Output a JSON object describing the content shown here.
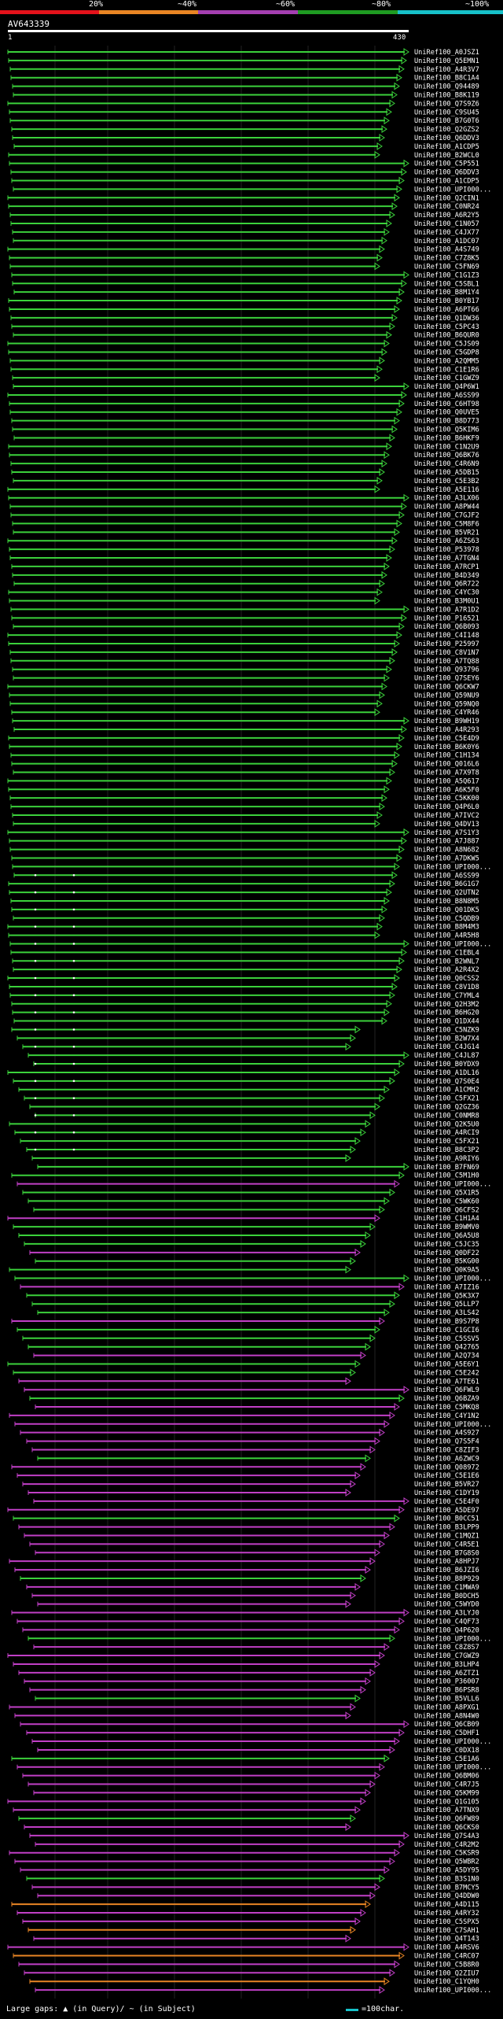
{
  "legend": {
    "labels": [
      "20%",
      "~40%",
      "~60%",
      "~80%",
      "~100%"
    ],
    "colors": [
      "#e4121b",
      "#e98524",
      "#a43fb1",
      "#1f9b22",
      "#17c1c9"
    ]
  },
  "query": {
    "title": "AV643339",
    "start": "1",
    "end": "430"
  },
  "hits": [
    "UniRef100_A0JSZ1",
    "UniRef100_Q5EMN1",
    "UniRef100_A4R3V7",
    "UniRef100_B8C1A4",
    "UniRef100_Q94489",
    "UniRef100_B8K119",
    "UniRef100_Q7S9Z6",
    "UniRef100_C9SU45",
    "UniRef100_B7G0T6",
    "UniRef100_Q2GZS2",
    "UniRef100_Q6DDV3",
    "UniRef100_A1CDP5",
    "UniRef100_B2WCL0",
    "UniRef100_C5P551",
    "UniRef100_Q6DDV3",
    "UniRef100_A1CDP5",
    "UniRef100_UPI000...",
    "UniRef100_Q2CIN1",
    "UniRef100_C0NR24",
    "UniRef100_A6R2Y5",
    "UniRef100_C1N057",
    "UniRef100_C4JX77",
    "UniRef100_A1DC07",
    "UniRef100_A4S749",
    "UniRef100_C7Z8K5",
    "UniRef100_C5FN69",
    "UniRef100_C1G1Z3",
    "UniRef100_C5SBL1",
    "UniRef100_B8M1Y4",
    "UniRef100_B0YB17",
    "UniRef100_A6PT66",
    "UniRef100_Q1DW36",
    "UniRef100_C5PC43",
    "UniRef100_B6QUR0",
    "UniRef100_C5JS09",
    "UniRef100_C5GDP8",
    "UniRef100_A2QMM5",
    "UniRef100_C1E1R6",
    "UniRef100_C1GWZ9",
    "UniRef100_Q4P6W1",
    "UniRef100_A6SS99",
    "UniRef100_C6HT98",
    "UniRef100_Q0UVE5",
    "UniRef100_B8D773",
    "UniRef100_Q5KIM6",
    "UniRef100_B6HKF9",
    "UniRef100_C1N2U9",
    "UniRef100_Q6BK76",
    "UniRef100_C4R6N9",
    "UniRef100_A5DB15",
    "UniRef100_C5E3B2",
    "UniRef100_A5E116",
    "UniRef100_A3LX06",
    "UniRef100_A8PW44",
    "UniRef100_C7GJF2",
    "UniRef100_C5M8F6",
    "UniRef100_B5VR21",
    "UniRef100_A6ZS63",
    "UniRef100_P53978",
    "UniRef100_A7TGN4",
    "UniRef100_A7RCP1",
    "UniRef100_B4D349",
    "UniRef100_Q6R722",
    "UniRef100_C4YC30",
    "UniRef100_B3M0U1",
    "UniRef100_A7R1D2",
    "UniRef100_P16521",
    "UniRef100_Q6B093",
    "UniRef100_C4I148",
    "UniRef100_P25997",
    "UniRef100_C8V1N7",
    "UniRef100_A7TQ88",
    "UniRef100_Q93796",
    "UniRef100_Q7SEY6",
    "UniRef100_Q6CKW7",
    "UniRef100_Q59NU9",
    "UniRef100_Q59NQ0",
    "UniRef100_C4YR46",
    "UniRef100_B9WH19",
    "UniRef100_A4R293",
    "UniRef100_C5E4D9",
    "UniRef100_B6K0Y6",
    "UniRef100_C1H134",
    "UniRef100_Q016L6",
    "UniRef100_A7X9T8",
    "UniRef100_A5Q617",
    "UniRef100_A6K5F0",
    "UniRef100_C5KK00",
    "UniRef100_Q4P6L0",
    "UniRef100_A7IVC2",
    "UniRef100_Q4DV13",
    "UniRef100_A7S1Y3",
    "UniRef100_A7J887",
    "UniRef100_A8N682",
    "UniRef100_A7DKW5",
    "UniRef100_UPI000...",
    "UniRef100_A6SS99",
    "UniRef100_B6G1G7",
    "UniRef100_Q2UTN2",
    "UniRef100_B8N8M5",
    "UniRef100_Q01DK5",
    "UniRef100_C5QDB9",
    "UniRef100_B8M4M3",
    "UniRef100_A4R5H8",
    "UniRef100_UPI000...",
    "UniRef100_C1EBL4",
    "UniRef100_B2WNL7",
    "UniRef100_A2R4X2",
    "UniRef100_Q0CSS2",
    "UniRef100_C8V1D8",
    "UniRef100_C7YML4",
    "UniRef100_Q2H3M2",
    "UniRef100_B6HG20",
    "UniRef100_Q1DX44",
    "UniRef100_C5NZK9",
    "UniRef100_B2W7X4",
    "UniRef100_C4JG14",
    "UniRef100_C4JL87",
    "UniRef100_B0YDX9",
    "UniRef100_A1DL16",
    "UniRef100_Q7S0E4",
    "UniRef100_A1CMH2",
    "UniRef100_C5FX21",
    "UniRef100_Q2GZ36",
    "UniRef100_C0NMR8",
    "UniRef100_Q2K5U0",
    "UniRef100_A4RCI9",
    "UniRef100_C5FX21",
    "UniRef100_B8C3P2",
    "UniRef100_A9RIY6",
    "UniRef100_B7FN69",
    "UniRef100_C5M1H0",
    "UniRef100_UPI000...",
    "UniRef100_Q5X1R5",
    "UniRef100_C5WK60",
    "UniRef100_Q6CFS2",
    "UniRef100_C1H1A4",
    "UniRef100_B9WMV0",
    "UniRef100_Q6A5U8",
    "UniRef100_C5JC35",
    "UniRef100_Q0DF22",
    "UniRef100_B5KG00",
    "UniRef100_Q0K9A5",
    "UniRef100_UPI000...",
    "UniRef100_A7IZ16",
    "UniRef100_Q5K3X7",
    "UniRef100_Q5LLP7",
    "UniRef100_A3LS42",
    "UniRef100_B9S7P8",
    "UniRef100_C1GCI6",
    "UniRef100_C5SSV5",
    "UniRef100_Q42765",
    "UniRef100_A2Q734",
    "UniRef100_A5E6Y1",
    "UniRef100_C5E242",
    "UniRef100_A7TE61",
    "UniRef100_Q6FWL9",
    "UniRef100_Q6BZA9",
    "UniRef100_C5MKQ8",
    "UniRef100_C4Y1N2",
    "UniRef100_UPI000...",
    "UniRef100_A4S927",
    "UniRef100_Q7S5F4",
    "UniRef100_C8ZIF3",
    "UniRef100_A6ZWC9",
    "UniRef100_Q08972",
    "UniRef100_C5E1E6",
    "UniRef100_B5VR27",
    "UniRef100_C1DY19",
    "UniRef100_C5E4F0",
    "UniRef100_A5DE97",
    "UniRef100_B0CC51",
    "UniRef100_B3LPP9",
    "UniRef100_C1MQZ1",
    "UniRef100_C4R5E1",
    "UniRef100_B7G8S0",
    "UniRef100_A8HPJ7",
    "UniRef100_B6JZI6",
    "UniRef100_B8P929",
    "UniRef100_C1MWA9",
    "UniRef100_B0DCH5",
    "UniRef100_C5WYD0",
    "UniRef100_A3LYJ0",
    "UniRef100_C4QF73",
    "UniRef100_Q4P620",
    "UniRef100_UPI000...",
    "UniRef100_C8Z8S7",
    "UniRef100_C7GWZ9",
    "UniRef100_B3LHP4",
    "UniRef100_A6ZTZ1",
    "UniRef100_P36007",
    "UniRef100_B6PSR8",
    "UniRef100_B5VLL6",
    "UniRef100_A8PXG1",
    "UniRef100_A8N4W0",
    "UniRef100_Q6CB09",
    "UniRef100_C5DHF1",
    "UniRef100_UPI000...",
    "UniRef100_C0DX18",
    "UniRef100_C5E1A6",
    "UniRef100_UPI000...",
    "UniRef100_Q6BM06",
    "UniRef100_C4R7J5",
    "UniRef100_Q5KM99",
    "UniRef100_Q1G105",
    "UniRef100_A7TNX9",
    "UniRef100_Q6FW89",
    "UniRef100_Q6CKS0",
    "UniRef100_Q7S4A3",
    "UniRef100_C4R2M2",
    "UniRef100_C5KSR9",
    "UniRef100_Q5WBR2",
    "UniRef100_A5DY95",
    "UniRef100_B3S1N0",
    "UniRef100_B7MCY5",
    "UniRef100_Q4DDW0",
    "UniRef100_A4D115",
    "UniRef100_A4RY32",
    "UniRef100_C5SPX5",
    "UniRef100_C7SAH1",
    "UniRef100_Q4T143",
    "UniRef100_A4RSV6",
    "UniRef100_C4RC07",
    "UniRef100_C5B8R0",
    "UniRef100_Q2ZIU7",
    "UniRef100_C1YQH0",
    "UniRef100_UPI000..."
  ],
  "footer": {
    "gaps_text": "Large gaps: ▲ (in Query)/ ~ (in Subject)",
    "scale_text": "=100char."
  }
}
